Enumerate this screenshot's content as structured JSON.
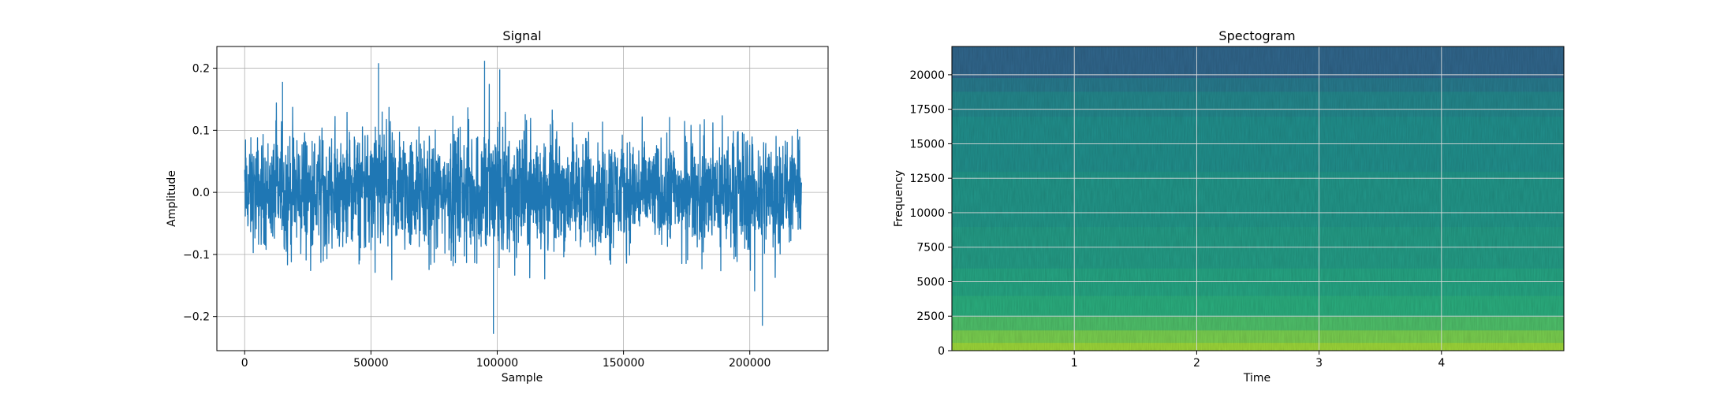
{
  "chart_data": [
    {
      "type": "line",
      "title": "Signal",
      "xlabel": "Sample",
      "ylabel": "Amplitude",
      "xlim": [
        -11000,
        231000
      ],
      "ylim": [
        -0.255,
        0.235
      ],
      "xticks": [
        0,
        50000,
        100000,
        150000,
        200000
      ],
      "yticks": [
        -0.2,
        -0.1,
        0.0,
        0.1,
        0.2
      ],
      "xtick_labels": [
        "0",
        "50000",
        "100000",
        "150000",
        "200000"
      ],
      "ytick_labels": [
        "−0.2",
        "−0.1",
        "0.0",
        "0.1",
        "0.2"
      ],
      "grid": true,
      "color": "#1f77b4",
      "n_samples": 220500,
      "envelope": {
        "x": [
          0,
          10000,
          20000,
          30000,
          40000,
          50000,
          60000,
          70000,
          80000,
          90000,
          100000,
          110000,
          120000,
          130000,
          140000,
          150000,
          160000,
          170000,
          180000,
          190000,
          200000,
          210000,
          220500
        ],
        "upper": [
          0.12,
          0.13,
          0.16,
          0.15,
          0.13,
          0.17,
          0.15,
          0.14,
          0.14,
          0.16,
          0.18,
          0.15,
          0.14,
          0.13,
          0.13,
          0.13,
          0.12,
          0.12,
          0.11,
          0.12,
          0.13,
          0.12,
          0.1
        ],
        "lower": [
          -0.11,
          -0.12,
          -0.12,
          -0.12,
          -0.13,
          -0.12,
          -0.14,
          -0.12,
          -0.12,
          -0.13,
          -0.17,
          -0.16,
          -0.13,
          -0.12,
          -0.12,
          -0.12,
          -0.11,
          -0.11,
          -0.12,
          -0.13,
          -0.17,
          -0.14,
          -0.1
        ]
      },
      "peaks": [
        {
          "x": 53000,
          "y": 0.208
        },
        {
          "x": 95000,
          "y": 0.212
        },
        {
          "x": 98500,
          "y": -0.228
        },
        {
          "x": 205000,
          "y": -0.215
        },
        {
          "x": 15000,
          "y": 0.178
        },
        {
          "x": 101000,
          "y": 0.198
        }
      ]
    },
    {
      "type": "heatmap",
      "title": "Spectogram",
      "xlabel": "Time",
      "ylabel": "Frequency",
      "xlim": [
        0,
        5.0
      ],
      "ylim": [
        0,
        22050
      ],
      "xticks": [
        1,
        2,
        3,
        4
      ],
      "yticks": [
        0,
        2500,
        5000,
        7500,
        10000,
        12500,
        15000,
        17500,
        20000
      ],
      "xtick_labels": [
        "1",
        "2",
        "3",
        "4"
      ],
      "ytick_labels": [
        "0",
        "2500",
        "5000",
        "7500",
        "10000",
        "12500",
        "15000",
        "17500",
        "20000"
      ],
      "grid": true,
      "colormap": "viridis",
      "frequency_bands": [
        {
          "f_low": 0,
          "f_high": 600,
          "level": 0.86
        },
        {
          "f_low": 600,
          "f_high": 1500,
          "level": 0.8
        },
        {
          "f_low": 1500,
          "f_high": 2500,
          "level": 0.72
        },
        {
          "f_low": 2500,
          "f_high": 4000,
          "level": 0.64
        },
        {
          "f_low": 4000,
          "f_high": 6000,
          "level": 0.6
        },
        {
          "f_low": 6000,
          "f_high": 9000,
          "level": 0.56
        },
        {
          "f_low": 9000,
          "f_high": 13000,
          "level": 0.53
        },
        {
          "f_low": 13000,
          "f_high": 17000,
          "level": 0.5
        },
        {
          "f_low": 17000,
          "f_high": 18800,
          "level": 0.47
        },
        {
          "f_low": 18800,
          "f_high": 19800,
          "level": 0.42
        },
        {
          "f_low": 19800,
          "f_high": 22050,
          "level": 0.34
        }
      ]
    }
  ]
}
